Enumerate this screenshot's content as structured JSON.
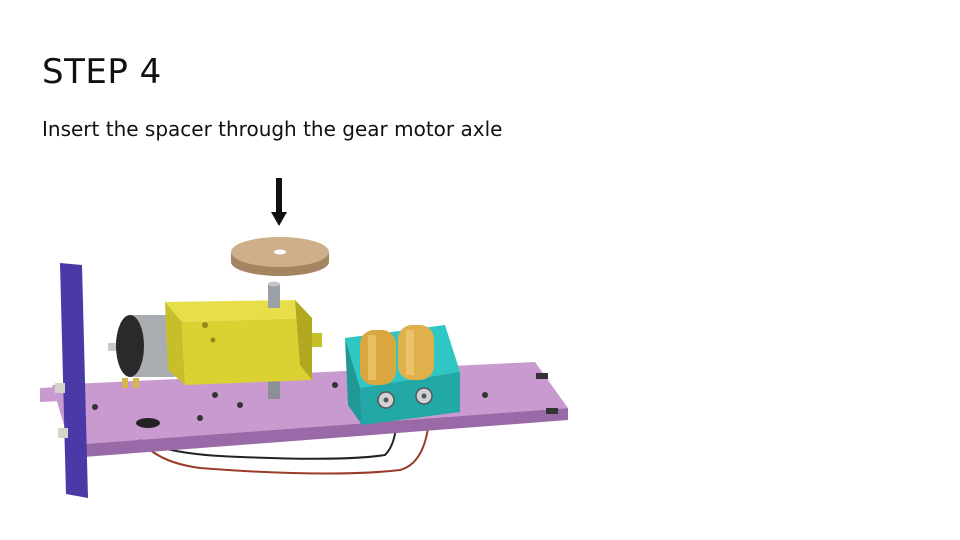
{
  "slide": {
    "title": "STEP 4",
    "instruction": "Insert the spacer through the gear motor axle"
  },
  "illustration": {
    "parts": [
      "down-arrow",
      "wooden-spacer",
      "motor-axle",
      "gear-motor",
      "dc-motor",
      "battery-holder",
      "batteries",
      "chassis-plate",
      "side-panel",
      "wires"
    ],
    "colors": {
      "plate": "#c99ad0",
      "plate_edge": "#9a6aa8",
      "side_panel": "#4a3aa8",
      "gearbox": "#d9d232",
      "gearbox_shade": "#b0a820",
      "battery_holder": "#2ec7c4",
      "battery": "#d9a640",
      "spacer": "#cfae8a",
      "axle": "#9aa0a6",
      "wire_red": "#9b3b2a",
      "wire_black": "#222222"
    }
  }
}
